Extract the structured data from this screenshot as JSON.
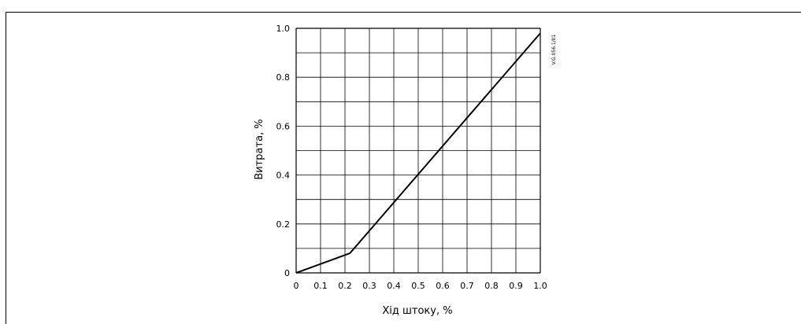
{
  "chart_data": {
    "type": "line",
    "title": "",
    "xlabel": "Хід штоку, %",
    "ylabel": "Витрата, %",
    "xlim": [
      0,
      1.0
    ],
    "ylim": [
      0,
      1.0
    ],
    "x_ticks": [
      "0",
      "0.1",
      "0.2",
      "0.3",
      "0.4",
      "0.5",
      "0.6",
      "0.7",
      "0.8",
      "0.9",
      "1.0"
    ],
    "y_ticks": [
      "0",
      "0.2",
      "0.4",
      "0.6",
      "0.8",
      "1.0"
    ],
    "x_grid_step": 0.1,
    "y_grid_step": 0.1,
    "grid": true,
    "legend": "none",
    "series": [
      {
        "x": [
          0,
          0.22,
          1.0
        ],
        "y": [
          0,
          0.08,
          0.98
        ]
      }
    ],
    "line_color": "#000000",
    "annotation": "V.G.056.1/01"
  }
}
